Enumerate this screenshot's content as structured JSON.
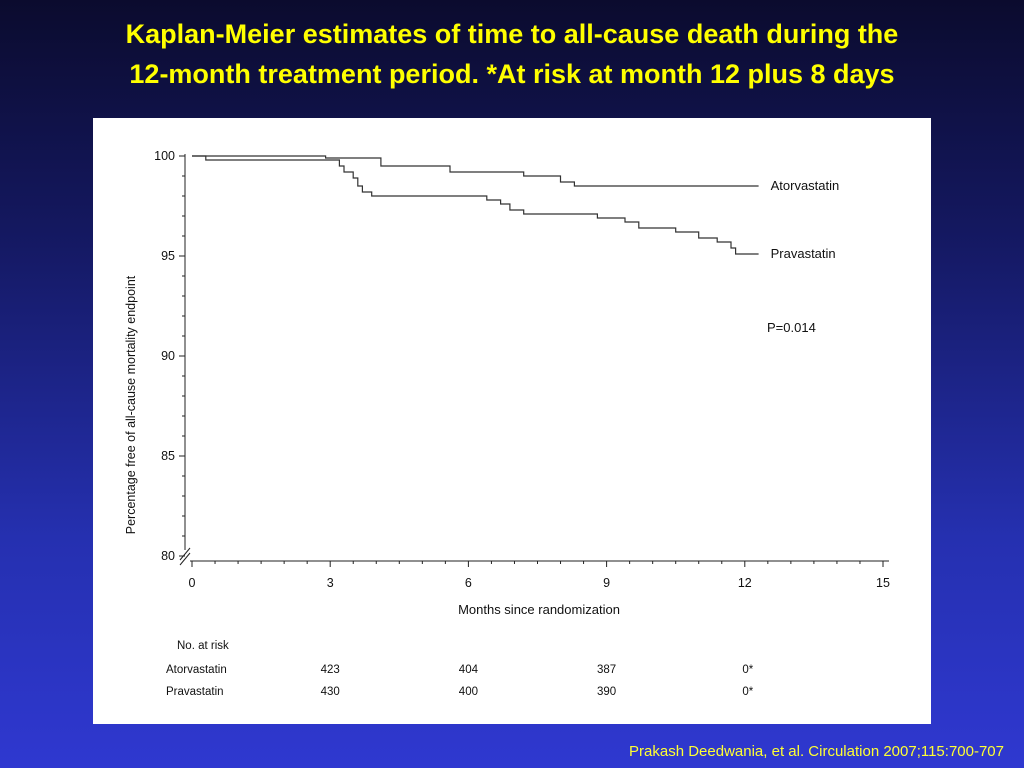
{
  "slide": {
    "title_line1": "Kaplan-Meier estimates of time to all-cause death during the",
    "title_line2": "12-month treatment period. *At risk at month 12 plus 8 days",
    "citation": "Prakash Deedwania, et al. Circulation 2007;115:700-707",
    "title_color": "#ffff00"
  },
  "chart_data": {
    "type": "line",
    "xlabel": "Months since randomization",
    "ylabel": "Percentage free of all-cause mortality endpoint",
    "xlim": [
      0,
      15
    ],
    "ylim": [
      80,
      100
    ],
    "x_ticks": [
      0,
      3,
      6,
      9,
      12,
      15
    ],
    "y_ticks": [
      80,
      85,
      90,
      95,
      100
    ],
    "annotation": "P=0.014",
    "series": [
      {
        "name": "Atorvastatin",
        "step_points": [
          [
            0,
            100
          ],
          [
            2.9,
            100
          ],
          [
            2.9,
            99.9
          ],
          [
            4.1,
            99.9
          ],
          [
            4.1,
            99.5
          ],
          [
            5.6,
            99.5
          ],
          [
            5.6,
            99.2
          ],
          [
            7.2,
            99.2
          ],
          [
            7.2,
            99.0
          ],
          [
            8.0,
            99.0
          ],
          [
            8.0,
            98.7
          ],
          [
            8.3,
            98.7
          ],
          [
            8.3,
            98.5
          ],
          [
            12.3,
            98.5
          ]
        ]
      },
      {
        "name": "Pravastatin",
        "step_points": [
          [
            0,
            100
          ],
          [
            0.3,
            100
          ],
          [
            0.3,
            99.8
          ],
          [
            3.2,
            99.8
          ],
          [
            3.2,
            99.5
          ],
          [
            3.3,
            99.5
          ],
          [
            3.3,
            99.2
          ],
          [
            3.5,
            99.2
          ],
          [
            3.5,
            98.9
          ],
          [
            3.6,
            98.9
          ],
          [
            3.6,
            98.5
          ],
          [
            3.7,
            98.5
          ],
          [
            3.7,
            98.2
          ],
          [
            3.9,
            98.2
          ],
          [
            3.9,
            98.0
          ],
          [
            6.4,
            98.0
          ],
          [
            6.4,
            97.8
          ],
          [
            6.7,
            97.8
          ],
          [
            6.7,
            97.6
          ],
          [
            6.9,
            97.6
          ],
          [
            6.9,
            97.3
          ],
          [
            7.2,
            97.3
          ],
          [
            7.2,
            97.1
          ],
          [
            8.8,
            97.1
          ],
          [
            8.8,
            96.9
          ],
          [
            9.4,
            96.9
          ],
          [
            9.4,
            96.7
          ],
          [
            9.7,
            96.7
          ],
          [
            9.7,
            96.4
          ],
          [
            10.5,
            96.4
          ],
          [
            10.5,
            96.2
          ],
          [
            11.0,
            96.2
          ],
          [
            11.0,
            95.9
          ],
          [
            11.4,
            95.9
          ],
          [
            11.4,
            95.7
          ],
          [
            11.7,
            95.7
          ],
          [
            11.7,
            95.4
          ],
          [
            11.8,
            95.4
          ],
          [
            11.8,
            95.1
          ],
          [
            12.3,
            95.1
          ]
        ]
      }
    ],
    "at_risk": {
      "header": "No. at risk",
      "months": [
        3,
        6,
        9,
        12
      ],
      "rows": [
        {
          "name": "Atorvastatin",
          "values": [
            "423",
            "404",
            "387",
            "0*"
          ]
        },
        {
          "name": "Pravastatin",
          "values": [
            "430",
            "400",
            "390",
            "0*"
          ]
        }
      ]
    }
  }
}
